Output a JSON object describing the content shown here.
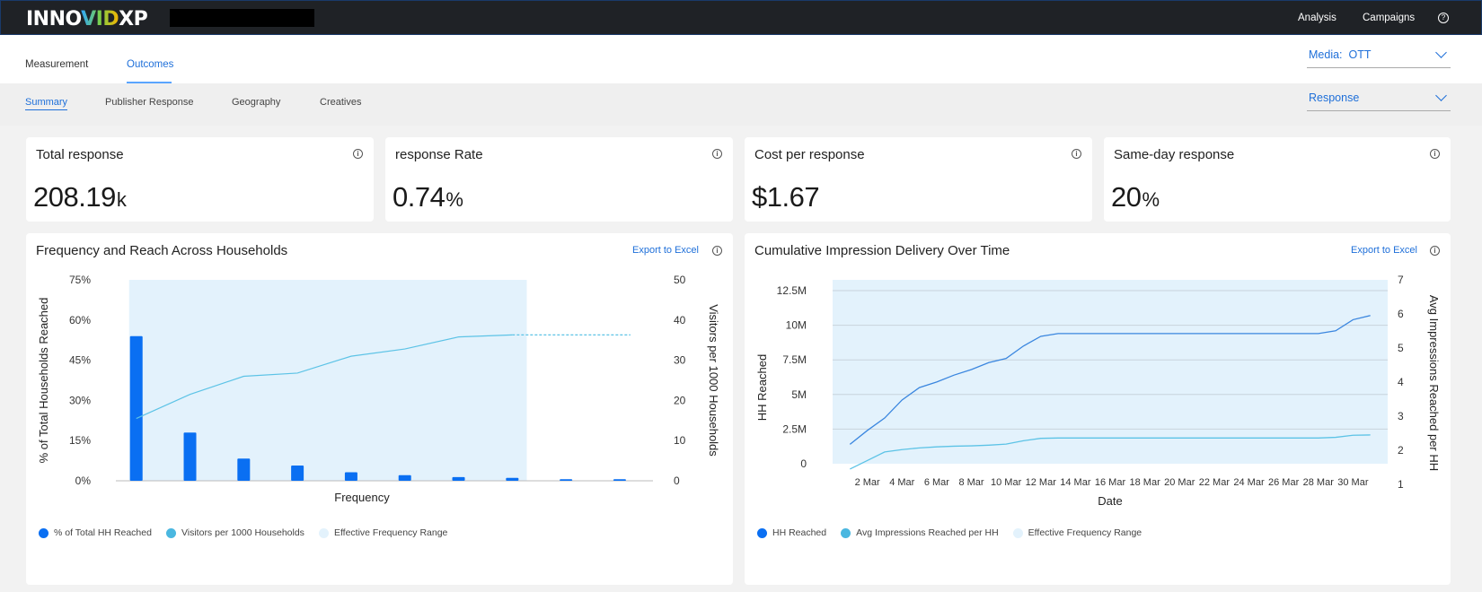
{
  "app": {
    "logo_left": "INNO",
    "logo_vid": "VID",
    "logo_right": "XP",
    "nav": [
      "Analysis",
      "Campaigns"
    ]
  },
  "tabs": [
    "Measurement",
    "Outcomes"
  ],
  "media_select": {
    "label": "Media:",
    "value": "OTT"
  },
  "subtabs": [
    "Summary",
    "Publisher Response",
    "Geography",
    "Creatives"
  ],
  "metric_select": {
    "value": "Response"
  },
  "kpis": [
    {
      "title": "Total response",
      "value": "208.19",
      "unit": "k"
    },
    {
      "title": "response Rate",
      "value": "0.74",
      "unit": "%"
    },
    {
      "title": "Cost per response",
      "value": "$1.67",
      "unit": ""
    },
    {
      "title": "Same-day response",
      "value": "20",
      "unit": "%"
    }
  ],
  "colors": {
    "accent": "#1e6fd9",
    "bar": "#0a6ff2",
    "line_light": "#5cc3e6",
    "line_dark": "#3a86df",
    "band": "#e3f2fc"
  },
  "chart_data": [
    {
      "type": "bar",
      "title": "Frequency and Reach Across Households",
      "export_label": "Export to Excel",
      "xlabel": "Frequency",
      "ylabel": "% of Total Households Reached",
      "y2label": "Visitors per 1000 Households",
      "y_ticks": [
        "0%",
        "15%",
        "30%",
        "45%",
        "60%",
        "75%"
      ],
      "y2_ticks": [
        "0",
        "10",
        "20",
        "30",
        "40",
        "50"
      ],
      "ylim": [
        0,
        75
      ],
      "y2lim": [
        0,
        50
      ],
      "series": [
        {
          "name": "% of Total HH Reached",
          "values": [
            54,
            18,
            8.3,
            5.7,
            3.2,
            2.1,
            1.4,
            1.1,
            0.6,
            0.6
          ]
        },
        {
          "name": "Visitors per 1000 Households",
          "values": [
            15.5,
            21.5,
            26,
            26.8,
            31,
            32.8,
            35.8,
            36.3,
            36.3,
            36.3
          ]
        }
      ],
      "effective_range": [
        1,
        8
      ],
      "legend": [
        "% of Total HH Reached",
        "Visitors per 1000 Households",
        "Effective Frequency Range"
      ]
    },
    {
      "type": "line",
      "title": "Cumulative Impression Delivery Over Time",
      "export_label": "Export to Excel",
      "xlabel": "Date",
      "ylabel": "HH Reached",
      "y2label": "Avg Impressions Reached per HH",
      "x_ticks": [
        "2 Mar",
        "4 Mar",
        "6 Mar",
        "8 Mar",
        "10 Mar",
        "12 Mar",
        "14 Mar",
        "16 Mar",
        "18 Mar",
        "20 Mar",
        "22 Mar",
        "24 Mar",
        "26 Mar",
        "28 Mar",
        "30 Mar"
      ],
      "y_ticks": [
        "0",
        "2.5M",
        "5M",
        "7.5M",
        "10M",
        "12.5M"
      ],
      "y2_ticks": [
        "1",
        "2",
        "3",
        "4",
        "5",
        "6",
        "7"
      ],
      "ylim": [
        0,
        12500000
      ],
      "y2lim": [
        1,
        7
      ],
      "series": [
        {
          "name": "HH Reached",
          "days": [
            1,
            2,
            3,
            4,
            5,
            6,
            7,
            8,
            9,
            10,
            11,
            12,
            13,
            14,
            15,
            16,
            17,
            18,
            19,
            20,
            21,
            22,
            23,
            24,
            25,
            26,
            27,
            28,
            29,
            30,
            31
          ],
          "values": [
            1400000,
            2400000,
            3300000,
            4600000,
            5500000,
            5900000,
            6400000,
            6800000,
            7300000,
            7600000,
            8500000,
            9200000,
            9400000,
            9400000,
            9400000,
            9400000,
            9400000,
            9400000,
            9400000,
            9400000,
            9400000,
            9400000,
            9400000,
            9400000,
            9400000,
            9400000,
            9400000,
            9400000,
            9600000,
            10400000,
            10700000
          ]
        },
        {
          "name": "Avg Impressions Reached per HH",
          "days": [
            1,
            2,
            3,
            4,
            5,
            6,
            7,
            8,
            9,
            10,
            11,
            12,
            13,
            14,
            15,
            16,
            17,
            18,
            19,
            20,
            21,
            22,
            23,
            24,
            25,
            26,
            27,
            28,
            29,
            30,
            31
          ],
          "values": [
            1.45,
            1.7,
            1.95,
            2.02,
            2.07,
            2.1,
            2.12,
            2.13,
            2.15,
            2.18,
            2.28,
            2.35,
            2.36,
            2.36,
            2.36,
            2.36,
            2.36,
            2.36,
            2.36,
            2.36,
            2.36,
            2.36,
            2.36,
            2.36,
            2.36,
            2.36,
            2.36,
            2.36,
            2.38,
            2.44,
            2.45
          ]
        }
      ],
      "effective_range": [
        0,
        32
      ],
      "legend": [
        "HH Reached",
        "Avg Impressions Reached per HH",
        "Effective Frequency Range"
      ]
    }
  ]
}
